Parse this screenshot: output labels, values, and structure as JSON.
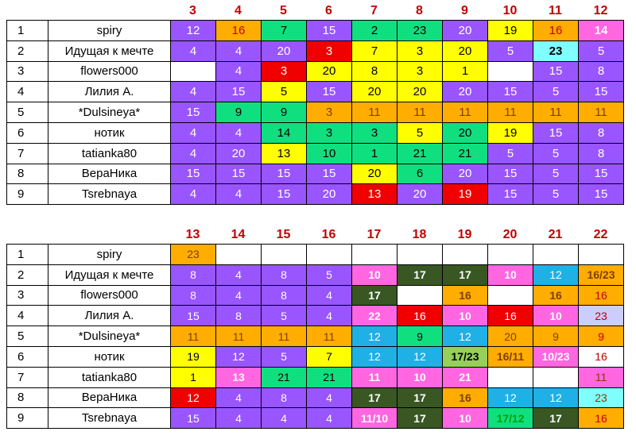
{
  "colors": {
    "P": "#9955ff",
    "O": "#ffad00",
    "G": "#10df80",
    "R": "#f00000",
    "Y": "#ffff00",
    "W": "#ffffff",
    "C": "#80ffff",
    "M": "#ff66e0",
    "D": "#385723",
    "B": "#1fb0e6",
    "L": "#95d15a",
    "F": "#ccccff"
  },
  "text_colors": {
    "w": "#ffffff",
    "k": "#000000",
    "r": "#c00000",
    "d": "#7f3f00",
    "g": "#00a000"
  },
  "table1": {
    "headers": [
      "3",
      "4",
      "5",
      "6",
      "7",
      "8",
      "9",
      "10",
      "11",
      "12"
    ],
    "rows": [
      {
        "num": "1",
        "name": "spiry",
        "cells": [
          {
            "t": "12",
            "bg": "P",
            "fg": "w"
          },
          {
            "t": "16",
            "bg": "O",
            "fg": "r"
          },
          {
            "t": "7",
            "bg": "G",
            "fg": "k"
          },
          {
            "t": "15",
            "bg": "P",
            "fg": "w"
          },
          {
            "t": "2",
            "bg": "G",
            "fg": "k"
          },
          {
            "t": "23",
            "bg": "G",
            "fg": "k"
          },
          {
            "t": "20",
            "bg": "P",
            "fg": "w"
          },
          {
            "t": "19",
            "bg": "Y",
            "fg": "k"
          },
          {
            "t": "16",
            "bg": "O",
            "fg": "r"
          },
          {
            "t": "14",
            "bg": "M",
            "fg": "w",
            "b": 1
          }
        ]
      },
      {
        "num": "2",
        "name": "Идущая к мечте",
        "cells": [
          {
            "t": "4",
            "bg": "P",
            "fg": "w"
          },
          {
            "t": "4",
            "bg": "P",
            "fg": "w"
          },
          {
            "t": "20",
            "bg": "P",
            "fg": "w"
          },
          {
            "t": "3",
            "bg": "R",
            "fg": "w"
          },
          {
            "t": "7",
            "bg": "Y",
            "fg": "k"
          },
          {
            "t": "3",
            "bg": "Y",
            "fg": "k"
          },
          {
            "t": "20",
            "bg": "Y",
            "fg": "k"
          },
          {
            "t": "5",
            "bg": "P",
            "fg": "w"
          },
          {
            "t": "23",
            "bg": "C",
            "fg": "k",
            "b": 1
          },
          {
            "t": "5",
            "bg": "P",
            "fg": "w"
          }
        ]
      },
      {
        "num": "3",
        "name": "flowers000",
        "cells": [
          {
            "t": "",
            "bg": "W",
            "fg": "k"
          },
          {
            "t": "4",
            "bg": "P",
            "fg": "w"
          },
          {
            "t": "3",
            "bg": "R",
            "fg": "w"
          },
          {
            "t": "20",
            "bg": "Y",
            "fg": "k"
          },
          {
            "t": "8",
            "bg": "Y",
            "fg": "k"
          },
          {
            "t": "3",
            "bg": "Y",
            "fg": "k"
          },
          {
            "t": "1",
            "bg": "Y",
            "fg": "k"
          },
          {
            "t": "",
            "bg": "W",
            "fg": "k"
          },
          {
            "t": "15",
            "bg": "P",
            "fg": "w"
          },
          {
            "t": "8",
            "bg": "P",
            "fg": "w"
          }
        ]
      },
      {
        "num": "4",
        "name": "Лилия А.",
        "cells": [
          {
            "t": "4",
            "bg": "P",
            "fg": "w"
          },
          {
            "t": "15",
            "bg": "P",
            "fg": "w"
          },
          {
            "t": "5",
            "bg": "Y",
            "fg": "k"
          },
          {
            "t": "15",
            "bg": "P",
            "fg": "w"
          },
          {
            "t": "20",
            "bg": "Y",
            "fg": "k"
          },
          {
            "t": "20",
            "bg": "Y",
            "fg": "k"
          },
          {
            "t": "20",
            "bg": "P",
            "fg": "w"
          },
          {
            "t": "15",
            "bg": "P",
            "fg": "w"
          },
          {
            "t": "5",
            "bg": "P",
            "fg": "w"
          },
          {
            "t": "15",
            "bg": "P",
            "fg": "w"
          }
        ]
      },
      {
        "num": "5",
        "name": "*Dulsineya*",
        "cells": [
          {
            "t": "15",
            "bg": "P",
            "fg": "w"
          },
          {
            "t": "9",
            "bg": "G",
            "fg": "k"
          },
          {
            "t": "9",
            "bg": "G",
            "fg": "k"
          },
          {
            "t": "3",
            "bg": "O",
            "fg": "d"
          },
          {
            "t": "11",
            "bg": "O",
            "fg": "d"
          },
          {
            "t": "11",
            "bg": "O",
            "fg": "d"
          },
          {
            "t": "11",
            "bg": "O",
            "fg": "d"
          },
          {
            "t": "11",
            "bg": "O",
            "fg": "d"
          },
          {
            "t": "11",
            "bg": "O",
            "fg": "d"
          },
          {
            "t": "11",
            "bg": "O",
            "fg": "d"
          }
        ]
      },
      {
        "num": "6",
        "name": "нотик",
        "cells": [
          {
            "t": "4",
            "bg": "P",
            "fg": "w"
          },
          {
            "t": "4",
            "bg": "P",
            "fg": "w"
          },
          {
            "t": "14",
            "bg": "G",
            "fg": "k"
          },
          {
            "t": "3",
            "bg": "G",
            "fg": "k"
          },
          {
            "t": "3",
            "bg": "G",
            "fg": "k"
          },
          {
            "t": "5",
            "bg": "Y",
            "fg": "k"
          },
          {
            "t": "20",
            "bg": "G",
            "fg": "k"
          },
          {
            "t": "19",
            "bg": "Y",
            "fg": "k"
          },
          {
            "t": "15",
            "bg": "P",
            "fg": "w"
          },
          {
            "t": "8",
            "bg": "P",
            "fg": "w"
          }
        ]
      },
      {
        "num": "7",
        "name": "tatianka80",
        "cells": [
          {
            "t": "4",
            "bg": "P",
            "fg": "w"
          },
          {
            "t": "20",
            "bg": "P",
            "fg": "w"
          },
          {
            "t": "13",
            "bg": "Y",
            "fg": "k"
          },
          {
            "t": "10",
            "bg": "G",
            "fg": "k"
          },
          {
            "t": "1",
            "bg": "G",
            "fg": "k"
          },
          {
            "t": "21",
            "bg": "G",
            "fg": "k"
          },
          {
            "t": "21",
            "bg": "G",
            "fg": "k"
          },
          {
            "t": "5",
            "bg": "P",
            "fg": "w"
          },
          {
            "t": "5",
            "bg": "P",
            "fg": "w"
          },
          {
            "t": "8",
            "bg": "P",
            "fg": "w"
          }
        ]
      },
      {
        "num": "8",
        "name": "ВераНика",
        "cells": [
          {
            "t": "15",
            "bg": "P",
            "fg": "w"
          },
          {
            "t": "15",
            "bg": "P",
            "fg": "w"
          },
          {
            "t": "15",
            "bg": "P",
            "fg": "w"
          },
          {
            "t": "15",
            "bg": "P",
            "fg": "w"
          },
          {
            "t": "20",
            "bg": "Y",
            "fg": "k"
          },
          {
            "t": "6",
            "bg": "G",
            "fg": "k"
          },
          {
            "t": "20",
            "bg": "P",
            "fg": "w"
          },
          {
            "t": "15",
            "bg": "P",
            "fg": "w"
          },
          {
            "t": "5",
            "bg": "P",
            "fg": "w"
          },
          {
            "t": "15",
            "bg": "P",
            "fg": "w"
          }
        ]
      },
      {
        "num": "9",
        "name": "Tsrebnaya",
        "cells": [
          {
            "t": "4",
            "bg": "P",
            "fg": "w"
          },
          {
            "t": "4",
            "bg": "P",
            "fg": "w"
          },
          {
            "t": "15",
            "bg": "P",
            "fg": "w"
          },
          {
            "t": "20",
            "bg": "P",
            "fg": "w"
          },
          {
            "t": "13",
            "bg": "R",
            "fg": "w"
          },
          {
            "t": "20",
            "bg": "P",
            "fg": "w"
          },
          {
            "t": "19",
            "bg": "R",
            "fg": "w"
          },
          {
            "t": "15",
            "bg": "P",
            "fg": "w"
          },
          {
            "t": "5",
            "bg": "P",
            "fg": "w"
          },
          {
            "t": "15",
            "bg": "P",
            "fg": "w"
          }
        ]
      }
    ]
  },
  "table2": {
    "headers": [
      "13",
      "14",
      "15",
      "16",
      "17",
      "18",
      "19",
      "20",
      "21",
      "22"
    ],
    "rows": [
      {
        "num": "1",
        "name": "spiry",
        "cells": [
          {
            "t": "23",
            "bg": "O",
            "fg": "d"
          },
          {
            "t": "",
            "bg": "W",
            "fg": "k"
          },
          {
            "t": "",
            "bg": "W",
            "fg": "k"
          },
          {
            "t": "",
            "bg": "W",
            "fg": "k"
          },
          {
            "t": "",
            "bg": "W",
            "fg": "k"
          },
          {
            "t": "",
            "bg": "W",
            "fg": "k"
          },
          {
            "t": "",
            "bg": "W",
            "fg": "k"
          },
          {
            "t": "",
            "bg": "W",
            "fg": "k"
          },
          {
            "t": "",
            "bg": "W",
            "fg": "k"
          },
          {
            "t": "",
            "bg": "W",
            "fg": "k"
          }
        ]
      },
      {
        "num": "2",
        "name": "Идущая к мечте",
        "cells": [
          {
            "t": "8",
            "bg": "P",
            "fg": "w"
          },
          {
            "t": "4",
            "bg": "P",
            "fg": "w"
          },
          {
            "t": "8",
            "bg": "P",
            "fg": "w"
          },
          {
            "t": "5",
            "bg": "P",
            "fg": "w"
          },
          {
            "t": "10",
            "bg": "M",
            "fg": "w",
            "b": 1
          },
          {
            "t": "17",
            "bg": "D",
            "fg": "w",
            "b": 1
          },
          {
            "t": "17",
            "bg": "D",
            "fg": "w",
            "b": 1
          },
          {
            "t": "10",
            "bg": "M",
            "fg": "w",
            "b": 1
          },
          {
            "t": "12",
            "bg": "B",
            "fg": "w"
          },
          {
            "t": "16/23",
            "bg": "O",
            "fg": "d",
            "b": 1
          }
        ]
      },
      {
        "num": "3",
        "name": "flowers000",
        "cells": [
          {
            "t": "8",
            "bg": "P",
            "fg": "w"
          },
          {
            "t": "4",
            "bg": "P",
            "fg": "w"
          },
          {
            "t": "8",
            "bg": "P",
            "fg": "w"
          },
          {
            "t": "4",
            "bg": "P",
            "fg": "w"
          },
          {
            "t": "17",
            "bg": "D",
            "fg": "w",
            "b": 1
          },
          {
            "t": "",
            "bg": "W",
            "fg": "k"
          },
          {
            "t": "16",
            "bg": "O",
            "fg": "d",
            "b": 1
          },
          {
            "t": "",
            "bg": "W",
            "fg": "k"
          },
          {
            "t": "16",
            "bg": "O",
            "fg": "d",
            "b": 1
          },
          {
            "t": "16",
            "bg": "O",
            "fg": "r"
          }
        ]
      },
      {
        "num": "4",
        "name": "Лилия А.",
        "cells": [
          {
            "t": "15",
            "bg": "P",
            "fg": "w"
          },
          {
            "t": "8",
            "bg": "P",
            "fg": "w"
          },
          {
            "t": "5",
            "bg": "P",
            "fg": "w"
          },
          {
            "t": "4",
            "bg": "P",
            "fg": "w"
          },
          {
            "t": "22",
            "bg": "M",
            "fg": "w",
            "b": 1
          },
          {
            "t": "16",
            "bg": "R",
            "fg": "w"
          },
          {
            "t": "10",
            "bg": "M",
            "fg": "w",
            "b": 1
          },
          {
            "t": "16",
            "bg": "R",
            "fg": "w"
          },
          {
            "t": "10",
            "bg": "M",
            "fg": "w",
            "b": 1
          },
          {
            "t": "23",
            "bg": "F",
            "fg": "r"
          }
        ]
      },
      {
        "num": "5",
        "name": "*Dulsineya*",
        "cells": [
          {
            "t": "11",
            "bg": "O",
            "fg": "d"
          },
          {
            "t": "11",
            "bg": "O",
            "fg": "d"
          },
          {
            "t": "11",
            "bg": "O",
            "fg": "d"
          },
          {
            "t": "11",
            "bg": "O",
            "fg": "d"
          },
          {
            "t": "12",
            "bg": "B",
            "fg": "w"
          },
          {
            "t": "9",
            "bg": "G",
            "fg": "k"
          },
          {
            "t": "12",
            "bg": "B",
            "fg": "w"
          },
          {
            "t": "20",
            "bg": "O",
            "fg": "d"
          },
          {
            "t": "9",
            "bg": "O",
            "fg": "d"
          },
          {
            "t": "9",
            "bg": "O",
            "fg": "r"
          }
        ]
      },
      {
        "num": "6",
        "name": "нотик",
        "cells": [
          {
            "t": "19",
            "bg": "Y",
            "fg": "k"
          },
          {
            "t": "12",
            "bg": "P",
            "fg": "w"
          },
          {
            "t": "5",
            "bg": "P",
            "fg": "w"
          },
          {
            "t": "7",
            "bg": "Y",
            "fg": "k"
          },
          {
            "t": "12",
            "bg": "B",
            "fg": "w"
          },
          {
            "t": "12",
            "bg": "B",
            "fg": "w"
          },
          {
            "t": "17/23",
            "bg": "L",
            "fg": "k",
            "b": 1
          },
          {
            "t": "16/11",
            "bg": "O",
            "fg": "d",
            "b": 1
          },
          {
            "t": "10/23",
            "bg": "M",
            "fg": "w",
            "b": 1
          },
          {
            "t": "16",
            "bg": "W",
            "fg": "r"
          }
        ]
      },
      {
        "num": "7",
        "name": "tatianka80",
        "cells": [
          {
            "t": "1",
            "bg": "Y",
            "fg": "k"
          },
          {
            "t": "13",
            "bg": "M",
            "fg": "w",
            "b": 1
          },
          {
            "t": "21",
            "bg": "G",
            "fg": "k"
          },
          {
            "t": "21",
            "bg": "G",
            "fg": "k"
          },
          {
            "t": "11",
            "bg": "M",
            "fg": "w",
            "b": 1
          },
          {
            "t": "10",
            "bg": "M",
            "fg": "w",
            "b": 1
          },
          {
            "t": "21",
            "bg": "M",
            "fg": "w",
            "b": 1
          },
          {
            "t": "",
            "bg": "W",
            "fg": "k"
          },
          {
            "t": "",
            "bg": "W",
            "fg": "k"
          },
          {
            "t": "11",
            "bg": "M",
            "fg": "d"
          }
        ]
      },
      {
        "num": "8",
        "name": "ВераНика",
        "cells": [
          {
            "t": "12",
            "bg": "R",
            "fg": "w"
          },
          {
            "t": "4",
            "bg": "P",
            "fg": "w"
          },
          {
            "t": "8",
            "bg": "P",
            "fg": "w"
          },
          {
            "t": "4",
            "bg": "P",
            "fg": "w"
          },
          {
            "t": "17",
            "bg": "D",
            "fg": "w",
            "b": 1
          },
          {
            "t": "17",
            "bg": "D",
            "fg": "w",
            "b": 1
          },
          {
            "t": "16",
            "bg": "O",
            "fg": "d",
            "b": 1
          },
          {
            "t": "12",
            "bg": "B",
            "fg": "w"
          },
          {
            "t": "12",
            "bg": "B",
            "fg": "w"
          },
          {
            "t": "23",
            "bg": "C",
            "fg": "d"
          }
        ]
      },
      {
        "num": "9",
        "name": "Tsrebnaya",
        "cells": [
          {
            "t": "15",
            "bg": "P",
            "fg": "w"
          },
          {
            "t": "4",
            "bg": "P",
            "fg": "w"
          },
          {
            "t": "4",
            "bg": "P",
            "fg": "w"
          },
          {
            "t": "4",
            "bg": "P",
            "fg": "w"
          },
          {
            "t": "11/10",
            "bg": "M",
            "fg": "w",
            "b": 1
          },
          {
            "t": "17",
            "bg": "D",
            "fg": "w",
            "b": 1
          },
          {
            "t": "10",
            "bg": "M",
            "fg": "w",
            "b": 1
          },
          {
            "t": "17/12",
            "bg": "G",
            "fg": "g",
            "b": 1
          },
          {
            "t": "17",
            "bg": "D",
            "fg": "w",
            "b": 1
          },
          {
            "t": "16",
            "bg": "O",
            "fg": "r"
          }
        ]
      }
    ]
  }
}
